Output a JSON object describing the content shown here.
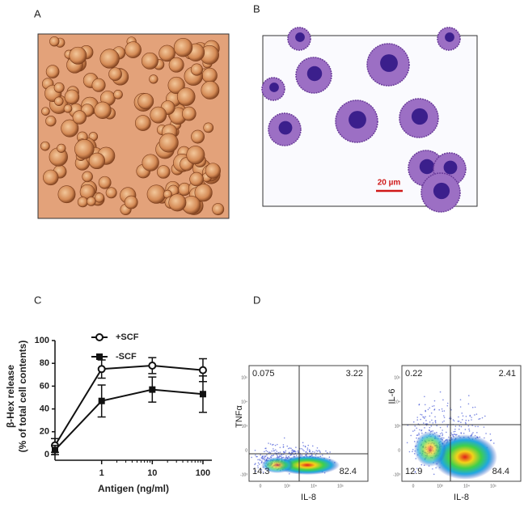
{
  "panel_labels": [
    "A",
    "B",
    "C",
    "D"
  ],
  "micrograph_b": {
    "scale_bar": "20 µm"
  },
  "chart_data": {
    "type": "line",
    "ylabel": [
      "β-Hex release",
      "(% of total cell contents)"
    ],
    "xlabel": "Antigen (ng/ml)",
    "x": [
      0.12,
      1,
      10,
      100
    ],
    "xlim": [
      0.12,
      150
    ],
    "xticks": [
      1,
      10,
      100
    ],
    "log_x": true,
    "ylim": [
      -5,
      100
    ],
    "yticks": [
      0,
      20,
      40,
      60,
      80,
      100
    ],
    "series": [
      {
        "name": "+SCF",
        "color": "#111111",
        "marker": "open-circle",
        "values": [
          8,
          75,
          78,
          74
        ],
        "errors": [
          6,
          8,
          7,
          10
        ]
      },
      {
        "name": "-SCF",
        "color": "#111111",
        "marker": "filled-square",
        "values": [
          4,
          47,
          57,
          53
        ],
        "errors": [
          4,
          14,
          11,
          16
        ]
      }
    ]
  },
  "flow_plots": [
    {
      "x_label": "IL-8",
      "y_label": "TNFα",
      "quadrants": [
        "0.075",
        "3.22",
        "14.3",
        "82.4"
      ],
      "x_ticks": [
        "0",
        "10³",
        "10⁴",
        "10⁵"
      ],
      "y_ticks": [
        "-10³",
        "0",
        "10³",
        "10⁴",
        "10⁵"
      ]
    },
    {
      "x_label": "IL-8",
      "y_label": "IL-6",
      "quadrants": [
        "0.22",
        "2.41",
        "12.9",
        "84.4"
      ],
      "x_ticks": [
        "0",
        "10³",
        "10⁴",
        "10⁵"
      ],
      "y_ticks": [
        "-10³",
        "0",
        "10³",
        "10⁴",
        "10⁵"
      ]
    }
  ]
}
